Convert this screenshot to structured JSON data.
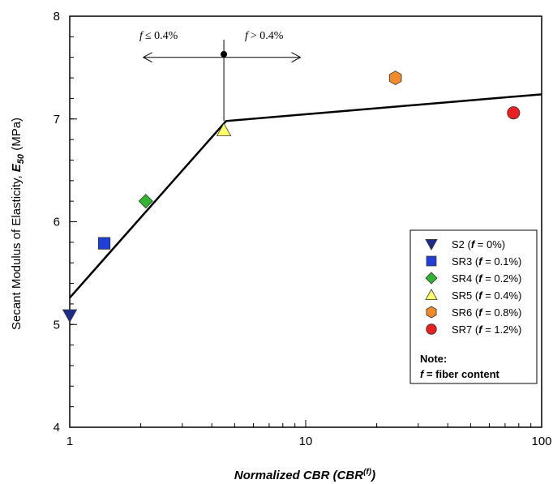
{
  "chart_data": {
    "type": "scatter",
    "x_scale": "log",
    "xlim": [
      1,
      100
    ],
    "ylim": [
      4,
      8
    ],
    "x_ticks": [
      "1",
      "10",
      "100"
    ],
    "y_ticks": [
      "4",
      "5",
      "6",
      "7",
      "8"
    ],
    "xlabel": {
      "main": "Normalized CBR (CBR",
      "sup": "(f)",
      "close": ")"
    },
    "ylabel": {
      "pre": "Secant Modulus of Elasticity, ",
      "italic": "E",
      "sub": "50",
      "post": " (MPa)"
    },
    "series": [
      {
        "name": "S2",
        "f": "0%",
        "x": 1.0,
        "y": 5.09,
        "marker": "triangle-down",
        "color": "#1c2a8c"
      },
      {
        "name": "SR3",
        "f": "0.1%",
        "x": 1.4,
        "y": 5.79,
        "marker": "square",
        "color": "#1f3fd6"
      },
      {
        "name": "SR4",
        "f": "0.2%",
        "x": 2.1,
        "y": 6.2,
        "marker": "diamond",
        "color": "#2fb52f"
      },
      {
        "name": "SR5",
        "f": "0.4%",
        "x": 4.5,
        "y": 6.89,
        "marker": "triangle-up",
        "color": "#ffff66"
      },
      {
        "name": "SR6",
        "f": "0.8%",
        "x": 24,
        "y": 7.4,
        "marker": "hexagon",
        "color": "#f08a2a"
      },
      {
        "name": "SR7",
        "f": "1.2%",
        "x": 76,
        "y": 7.06,
        "marker": "circle",
        "color": "#e82020"
      }
    ],
    "trend_line": [
      {
        "x": 1.0,
        "y": 5.26
      },
      {
        "x": 4.6,
        "y": 6.98
      },
      {
        "x": 100,
        "y": 7.24
      }
    ],
    "threshold": {
      "x": 4.5,
      "y_top": 7.63,
      "y_bottom": 6.98,
      "arrow_y": 7.6,
      "arrow_left_x": 2.05,
      "arrow_right_x": 9.5
    },
    "annotations": {
      "left": "f ≤ 0.4%",
      "right": "f > 0.4%"
    },
    "legend": {
      "position": "right",
      "entries": [
        {
          "label": "S2",
          "f_text": "0%"
        },
        {
          "label": "SR3",
          "f_text": "0.1%"
        },
        {
          "label": "SR4",
          "f_text": "0.2%"
        },
        {
          "label": "SR5",
          "f_text": "0.4%"
        },
        {
          "label": "SR6",
          "f_text": "0.8%"
        },
        {
          "label": "SR7",
          "f_text": "1.2%"
        }
      ]
    },
    "note": {
      "title": "Note:",
      "f_symbol": "f",
      "text": " = fiber content"
    }
  }
}
